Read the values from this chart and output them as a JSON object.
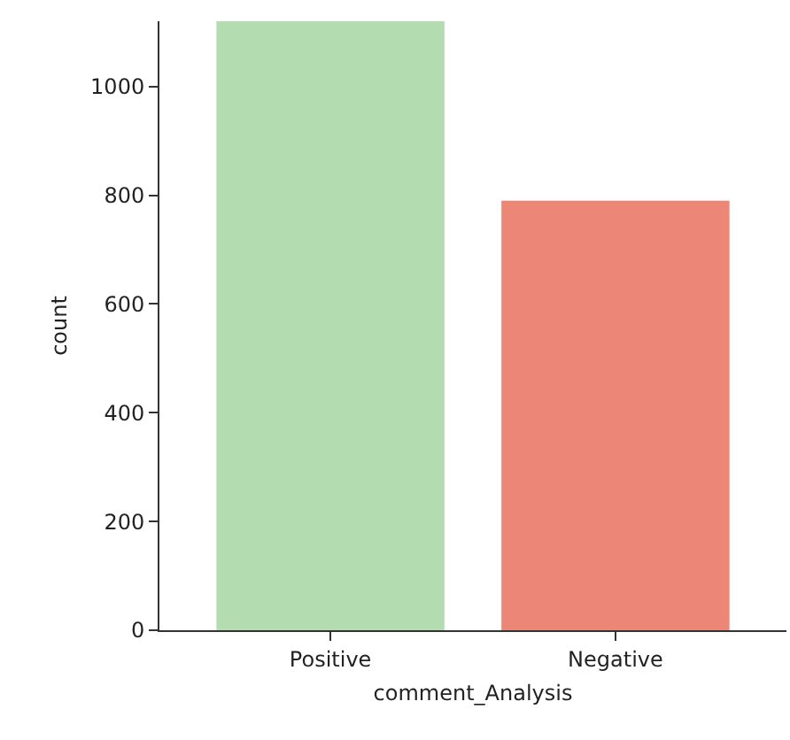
{
  "chart_data": {
    "type": "bar",
    "xlabel": "comment_Analysis",
    "ylabel": "count",
    "categories": [
      "Positive",
      "Negative"
    ],
    "values": [
      1120,
      790
    ],
    "colors": [
      "#b3dcb1",
      "#ec8677"
    ],
    "ylim": [
      0,
      1120
    ],
    "yticks": [
      0,
      200,
      400,
      600,
      800,
      1000
    ],
    "grid": false
  }
}
